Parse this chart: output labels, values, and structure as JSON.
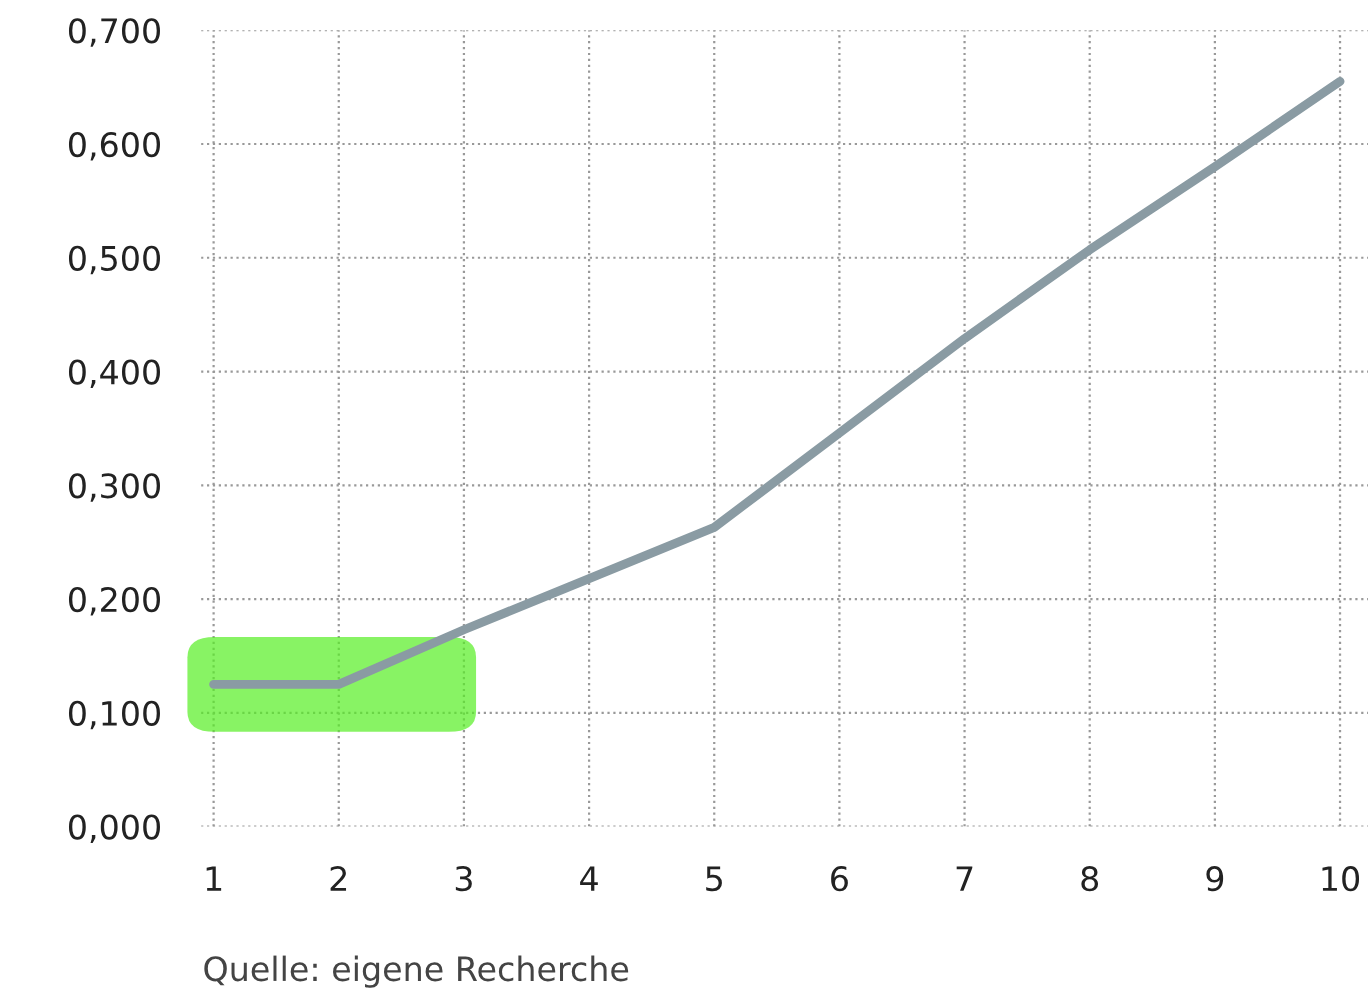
{
  "chart_data": {
    "type": "line",
    "x": [
      1,
      2,
      3,
      4,
      5,
      6,
      7,
      8,
      9,
      10
    ],
    "series": [
      {
        "color": "#8a9ba3",
        "values": [
          0.125,
          0.125,
          0.173,
          0.218,
          0.263,
          0.346,
          0.429,
          0.507,
          0.58,
          0.655
        ]
      }
    ],
    "xlim": [
      0.9,
      10.3
    ],
    "xticks": [
      1,
      2,
      3,
      4,
      5,
      6,
      7,
      8,
      9,
      10
    ],
    "ylim": [
      0,
      0.7
    ],
    "yticks": [
      {
        "value": 0,
        "label": "0,000"
      },
      {
        "value": 0.1,
        "label": "0,100"
      },
      {
        "value": 0.2,
        "label": "0,200"
      },
      {
        "value": 0.3,
        "label": "0,300"
      },
      {
        "value": 0.4,
        "label": "0,400"
      },
      {
        "value": 0.5,
        "label": "0,500"
      },
      {
        "value": 0.6,
        "label": "0,600"
      },
      {
        "value": 0.7,
        "label": "0,700"
      }
    ],
    "grid": true,
    "legend": false,
    "marker": "none",
    "line_style": "solid",
    "annotations": [
      "Quelle: eigene Recherche"
    ]
  }
}
